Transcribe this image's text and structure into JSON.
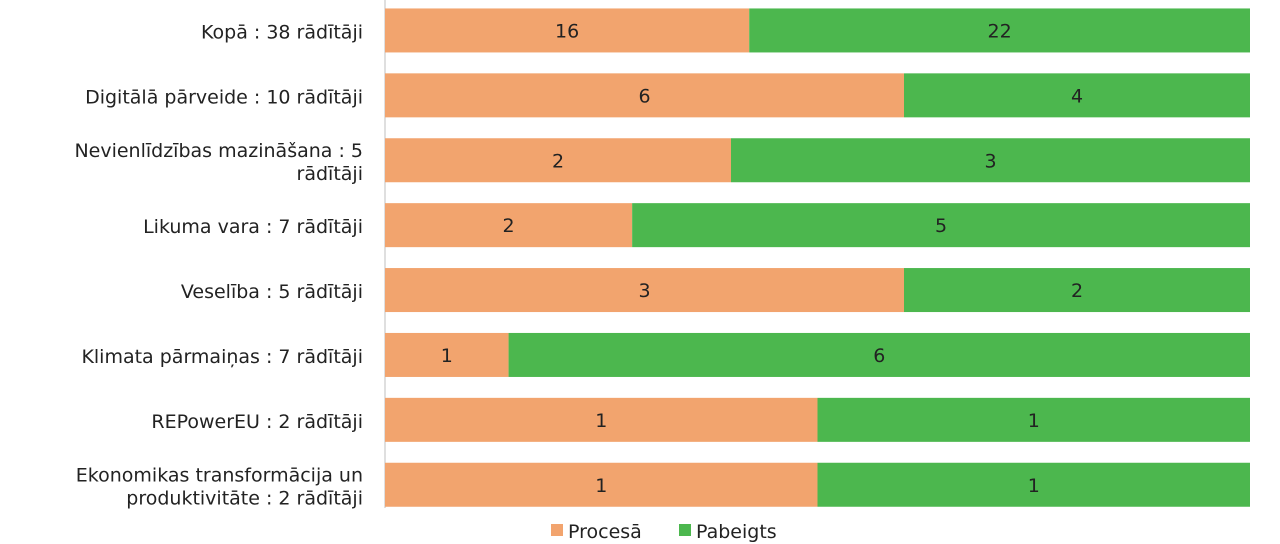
{
  "chart_data": {
    "type": "bar",
    "orientation": "horizontal",
    "stacked": "percent",
    "categories": [
      "Kopā : 38 rādītāji",
      "Digitālā pārveide : 10 rādītāji",
      "Nevienlīdzības mazināšana : 5 rādītāji",
      "Likuma vara : 7 rādītāji",
      "Veselība : 5 rādītāji",
      "Klimata pārmaiņas : 7 rādītāji",
      "REPowerEU : 2 rādītāji",
      "Ekonomikas transformācija un produktivitāte : 2 rādītāji"
    ],
    "series": [
      {
        "name": "Procesā",
        "color": "#f2a46e",
        "values": [
          16,
          6,
          2,
          2,
          3,
          1,
          1,
          1
        ]
      },
      {
        "name": "Pabeigts",
        "color": "#4cb74e",
        "values": [
          22,
          4,
          3,
          5,
          2,
          6,
          1,
          1
        ]
      }
    ],
    "legend": "bottom",
    "grid": false
  }
}
